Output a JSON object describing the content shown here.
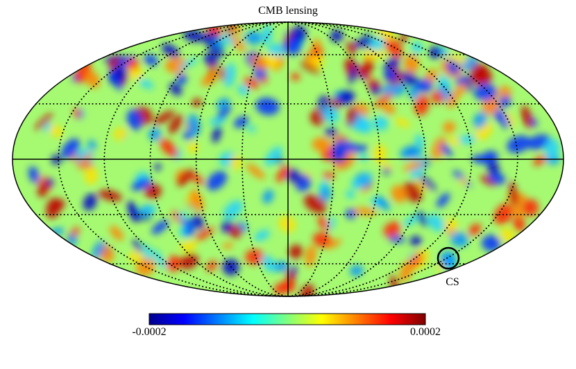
{
  "title": "CMB lensing",
  "annotation": "CS",
  "colorbar": {
    "min": -0.0002,
    "max": 0.0002
  }
}
